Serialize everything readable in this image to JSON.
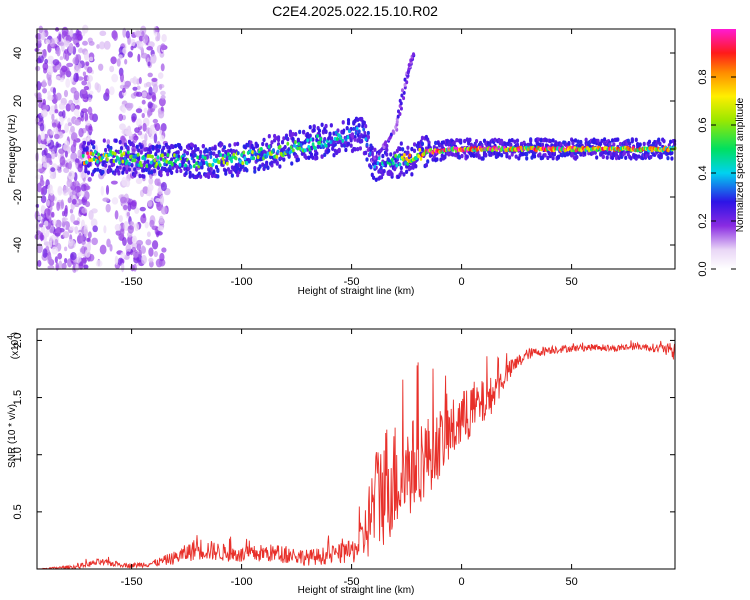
{
  "title": "C2E4.2025.022.15.10.R02",
  "colors": {
    "snr_line": "#e8302a",
    "axes": "#000000",
    "background": "#ffffff"
  },
  "chart_data": [
    {
      "type": "heatmap",
      "xlabel": "Height of straight line (km)",
      "ylabel": "Frequency (Hz)",
      "xlim": [
        -193,
        97
      ],
      "ylim": [
        -50,
        50
      ],
      "x_ticks": [
        -150,
        -100,
        -50,
        0,
        50
      ],
      "y_ticks": [
        -40,
        -20,
        0,
        20,
        40
      ],
      "colorbar": {
        "label": "Normalized spectral amplitude",
        "range": [
          0,
          1
        ],
        "ticks": [
          "0.0",
          "0.2",
          "0.4",
          "0.6",
          "0.8"
        ],
        "colormap": "rainbow (white-violet-blue-cyan-green-yellow-orange-red-magenta)"
      },
      "ridge": {
        "points": [
          {
            "x": -172,
            "y": -4,
            "amp": 0.9
          },
          {
            "x": -160,
            "y": -3,
            "amp": 0.6
          },
          {
            "x": -140,
            "y": -5,
            "amp": 0.55
          },
          {
            "x": -120,
            "y": -5,
            "amp": 0.5
          },
          {
            "x": -100,
            "y": -4,
            "amp": 0.6
          },
          {
            "x": -80,
            "y": 0,
            "amp": 0.55
          },
          {
            "x": -60,
            "y": 4,
            "amp": 0.45
          },
          {
            "x": -45,
            "y": 7,
            "amp": 0.3
          },
          {
            "x": -40,
            "y": -6,
            "amp": 0.35
          },
          {
            "x": -30,
            "y": -5,
            "amp": 0.5
          },
          {
            "x": -22,
            "y": -4,
            "amp": 0.85
          },
          {
            "x": -15,
            "y": -1,
            "amp": 0.9
          },
          {
            "x": 0,
            "y": 0,
            "amp": 0.85
          },
          {
            "x": 20,
            "y": 0,
            "amp": 0.9
          },
          {
            "x": 50,
            "y": 0,
            "amp": 0.85
          },
          {
            "x": 80,
            "y": 0,
            "amp": 0.8
          },
          {
            "x": 95,
            "y": 0,
            "amp": 0.75
          }
        ],
        "diagonal_branch": [
          {
            "x": -40,
            "y": -5
          },
          {
            "x": -30,
            "y": 8
          },
          {
            "x": -25,
            "y": 30
          },
          {
            "x": -22,
            "y": 40
          }
        ]
      }
    },
    {
      "type": "line",
      "xlabel": "Height of straight line (km)",
      "ylabel": "SNR (10 * v/v)",
      "y_multiplier": "(x10",
      "y_multiplier_exponent": "4",
      "y_multiplier_close": ")",
      "xlim": [
        -193,
        97
      ],
      "ylim": [
        0,
        2.1
      ],
      "x_ticks": [
        -150,
        -100,
        -50,
        0,
        50
      ],
      "y_ticks": [
        0.5,
        1.0,
        1.5,
        2.0
      ],
      "y_tick_labels": [
        "0.5",
        "1.0",
        "1.5",
        "2.0"
      ],
      "series": [
        {
          "values_x": [
            -193,
            -175,
            -165,
            -150,
            -140,
            -130,
            -120,
            -110,
            -100,
            -90,
            -80,
            -70,
            -60,
            -50,
            -45,
            -40,
            -35,
            -30,
            -25,
            -20,
            -15,
            -10,
            -5,
            0,
            5,
            10,
            15,
            20,
            25,
            30,
            35,
            40,
            50,
            60,
            70,
            80,
            90,
            97
          ],
          "values_y": [
            0.0,
            0.02,
            0.06,
            0.03,
            0.05,
            0.1,
            0.18,
            0.15,
            0.12,
            0.14,
            0.13,
            0.1,
            0.12,
            0.15,
            0.25,
            0.55,
            0.75,
            0.8,
            0.85,
            0.95,
            1.0,
            1.1,
            1.2,
            1.3,
            1.4,
            1.45,
            1.55,
            1.7,
            1.8,
            1.88,
            1.9,
            1.92,
            1.93,
            1.94,
            1.93,
            1.95,
            1.93,
            1.9
          ],
          "noise_amplitude": [
            0.0,
            0.02,
            0.03,
            0.02,
            0.03,
            0.06,
            0.1,
            0.08,
            0.07,
            0.08,
            0.08,
            0.07,
            0.08,
            0.1,
            0.2,
            0.45,
            0.55,
            0.5,
            0.45,
            0.4,
            0.35,
            0.3,
            0.28,
            0.25,
            0.25,
            0.2,
            0.15,
            0.1,
            0.07,
            0.05,
            0.04,
            0.04,
            0.03,
            0.03,
            0.03,
            0.03,
            0.04,
            0.08
          ]
        }
      ]
    }
  ]
}
